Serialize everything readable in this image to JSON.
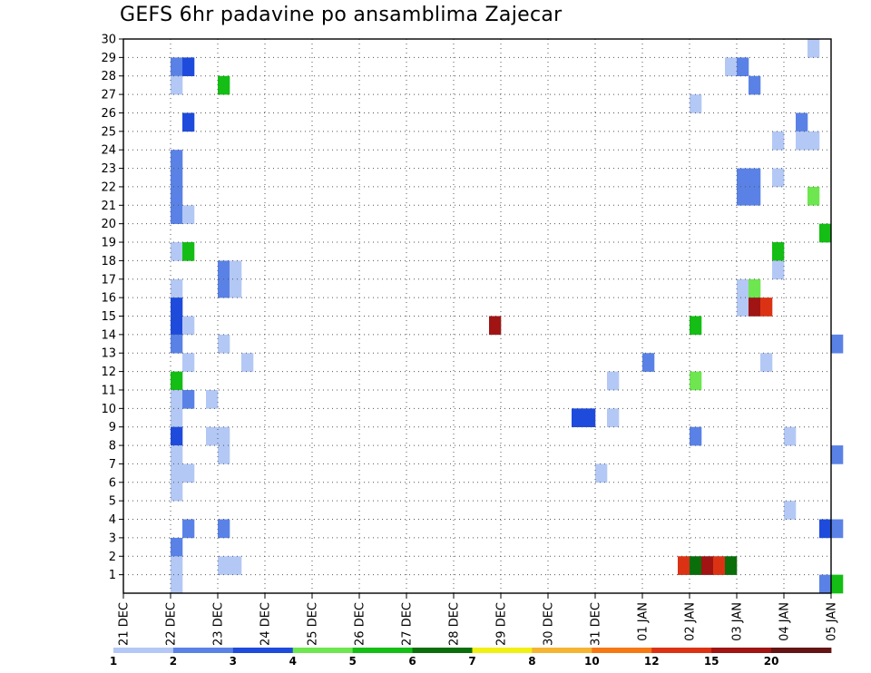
{
  "chart_data": {
    "type": "heatmap",
    "title": "GEFS 6hr padavine po ansamblima Zajecar",
    "x_tick_labels": [
      "21 DEC",
      "22 DEC",
      "23 DEC",
      "24 DEC",
      "25 DEC",
      "26 DEC",
      "27 DEC",
      "28 DEC",
      "29 DEC",
      "30 DEC",
      "31 DEC",
      "01 JAN",
      "02 JAN",
      "03 JAN",
      "04 JAN",
      "05 JAN"
    ],
    "x_range_days": [
      0,
      15
    ],
    "y_tick_labels": [
      "1",
      "2",
      "3",
      "4",
      "5",
      "6",
      "7",
      "8",
      "9",
      "10",
      "11",
      "12",
      "13",
      "14",
      "15",
      "16",
      "17",
      "18",
      "19",
      "20",
      "21",
      "22",
      "23",
      "24",
      "25",
      "26",
      "27",
      "28",
      "29",
      "30"
    ],
    "y_range": [
      0,
      30
    ],
    "grid": true,
    "step_hours": 6,
    "color_levels": [
      {
        "upper": "2",
        "color": "#b4c8f5"
      },
      {
        "upper": "3",
        "color": "#5a82e6"
      },
      {
        "upper": "4",
        "color": "#1e4bdc"
      },
      {
        "upper": "5",
        "color": "#6ee650"
      },
      {
        "upper": "6",
        "color": "#14be14"
      },
      {
        "upper": "7",
        "color": "#0a6e0a"
      },
      {
        "upper": "8",
        "color": "#f0f014"
      },
      {
        "upper": "10",
        "color": "#f5b432"
      },
      {
        "upper": "12",
        "color": "#f57814"
      },
      {
        "upper": "15",
        "color": "#dc3214"
      },
      {
        "upper": "20",
        "color": "#a01414"
      },
      {
        "upper": "",
        "color": "#641414"
      }
    ],
    "colorbar_labels": [
      "1",
      "2",
      "3",
      "4",
      "5",
      "6",
      "7",
      "8",
      "10",
      "12",
      "15",
      "20"
    ],
    "cells": [
      {
        "m": 30,
        "t": "04 JAN 12Z",
        "l": 0
      },
      {
        "m": 29,
        "t": "22 DEC 00Z",
        "l": 1
      },
      {
        "m": 29,
        "t": "22 DEC 06Z",
        "l": 2
      },
      {
        "m": 29,
        "t": "02 JAN 18Z",
        "l": 0
      },
      {
        "m": 29,
        "t": "03 JAN 00Z",
        "l": 1
      },
      {
        "m": 28,
        "t": "22 DEC 00Z",
        "l": 0
      },
      {
        "m": 28,
        "t": "23 DEC 00Z",
        "l": 4
      },
      {
        "m": 28,
        "t": "03 JAN 06Z",
        "l": 1
      },
      {
        "m": 27,
        "t": "02 JAN 00Z",
        "l": 0
      },
      {
        "m": 26,
        "t": "22 DEC 06Z",
        "l": 2
      },
      {
        "m": 26,
        "t": "04 JAN 06Z",
        "l": 1
      },
      {
        "m": 25,
        "t": "03 JAN 18Z",
        "l": 0
      },
      {
        "m": 25,
        "t": "04 JAN 06Z",
        "l": 0
      },
      {
        "m": 25,
        "t": "04 JAN 12Z",
        "l": 0
      },
      {
        "m": 24,
        "t": "22 DEC 00Z",
        "l": 1
      },
      {
        "m": 23,
        "t": "22 DEC 00Z",
        "l": 1
      },
      {
        "m": 23,
        "t": "03 JAN 00Z",
        "l": 1
      },
      {
        "m": 23,
        "t": "03 JAN 06Z",
        "l": 1
      },
      {
        "m": 23,
        "t": "03 JAN 18Z",
        "l": 0
      },
      {
        "m": 22,
        "t": "22 DEC 00Z",
        "l": 1
      },
      {
        "m": 22,
        "t": "03 JAN 00Z",
        "l": 1
      },
      {
        "m": 22,
        "t": "03 JAN 06Z",
        "l": 1
      },
      {
        "m": 22,
        "t": "04 JAN 12Z",
        "l": 3
      },
      {
        "m": 21,
        "t": "22 DEC 00Z",
        "l": 1
      },
      {
        "m": 21,
        "t": "22 DEC 06Z",
        "l": 0
      },
      {
        "m": 20,
        "t": "04 JAN 18Z",
        "l": 4
      },
      {
        "m": 19,
        "t": "22 DEC 00Z",
        "l": 0
      },
      {
        "m": 19,
        "t": "22 DEC 06Z",
        "l": 4
      },
      {
        "m": 19,
        "t": "03 JAN 18Z",
        "l": 4
      },
      {
        "m": 18,
        "t": "23 DEC 00Z",
        "l": 1
      },
      {
        "m": 18,
        "t": "23 DEC 06Z",
        "l": 0
      },
      {
        "m": 18,
        "t": "03 JAN 18Z",
        "l": 0
      },
      {
        "m": 17,
        "t": "22 DEC 00Z",
        "l": 0
      },
      {
        "m": 17,
        "t": "23 DEC 00Z",
        "l": 1
      },
      {
        "m": 17,
        "t": "23 DEC 06Z",
        "l": 0
      },
      {
        "m": 17,
        "t": "03 JAN 00Z",
        "l": 0
      },
      {
        "m": 17,
        "t": "03 JAN 06Z",
        "l": 3
      },
      {
        "m": 16,
        "t": "22 DEC 00Z",
        "l": 2
      },
      {
        "m": 16,
        "t": "03 JAN 00Z",
        "l": 0
      },
      {
        "m": 16,
        "t": "03 JAN 06Z",
        "l": 10
      },
      {
        "m": 16,
        "t": "03 JAN 12Z",
        "l": 9
      },
      {
        "m": 15,
        "t": "22 DEC 00Z",
        "l": 2
      },
      {
        "m": 15,
        "t": "22 DEC 06Z",
        "l": 0
      },
      {
        "m": 15,
        "t": "28 DEC 18Z",
        "l": 10
      },
      {
        "m": 15,
        "t": "02 JAN 00Z",
        "l": 4
      },
      {
        "m": 14,
        "t": "22 DEC 00Z",
        "l": 1
      },
      {
        "m": 14,
        "t": "23 DEC 00Z",
        "l": 0
      },
      {
        "m": 14,
        "t": "05 JAN 00Z",
        "l": 1
      },
      {
        "m": 13,
        "t": "22 DEC 06Z",
        "l": 0
      },
      {
        "m": 13,
        "t": "23 DEC 12Z",
        "l": 0
      },
      {
        "m": 13,
        "t": "01 JAN 00Z",
        "l": 1
      },
      {
        "m": 13,
        "t": "03 JAN 12Z",
        "l": 0
      },
      {
        "m": 12,
        "t": "22 DEC 00Z",
        "l": 4
      },
      {
        "m": 12,
        "t": "31 DEC 06Z",
        "l": 0
      },
      {
        "m": 12,
        "t": "02 JAN 00Z",
        "l": 3
      },
      {
        "m": 11,
        "t": "22 DEC 00Z",
        "l": 0
      },
      {
        "m": 11,
        "t": "22 DEC 06Z",
        "l": 1
      },
      {
        "m": 11,
        "t": "22 DEC 18Z",
        "l": 0
      },
      {
        "m": 10,
        "t": "22 DEC 00Z",
        "l": 0
      },
      {
        "m": 10,
        "t": "30 DEC 12Z",
        "l": 2
      },
      {
        "m": 10,
        "t": "30 DEC 18Z",
        "l": 2
      },
      {
        "m": 10,
        "t": "31 DEC 06Z",
        "l": 0
      },
      {
        "m": 9,
        "t": "22 DEC 00Z",
        "l": 2
      },
      {
        "m": 9,
        "t": "22 DEC 18Z",
        "l": 0
      },
      {
        "m": 9,
        "t": "23 DEC 00Z",
        "l": 0
      },
      {
        "m": 9,
        "t": "02 JAN 00Z",
        "l": 1
      },
      {
        "m": 9,
        "t": "04 JAN 00Z",
        "l": 0
      },
      {
        "m": 8,
        "t": "22 DEC 00Z",
        "l": 0
      },
      {
        "m": 8,
        "t": "23 DEC 00Z",
        "l": 0
      },
      {
        "m": 8,
        "t": "05 JAN 00Z",
        "l": 1
      },
      {
        "m": 7,
        "t": "22 DEC 00Z",
        "l": 0
      },
      {
        "m": 7,
        "t": "22 DEC 06Z",
        "l": 0
      },
      {
        "m": 7,
        "t": "31 DEC 00Z",
        "l": 0
      },
      {
        "m": 6,
        "t": "22 DEC 00Z",
        "l": 0
      },
      {
        "m": 5,
        "t": "04 JAN 00Z",
        "l": 0
      },
      {
        "m": 4,
        "t": "22 DEC 06Z",
        "l": 1
      },
      {
        "m": 4,
        "t": "23 DEC 00Z",
        "l": 1
      },
      {
        "m": 4,
        "t": "04 JAN 18Z",
        "l": 2
      },
      {
        "m": 4,
        "t": "05 JAN 00Z",
        "l": 1
      },
      {
        "m": 3,
        "t": "22 DEC 00Z",
        "l": 1
      },
      {
        "m": 2,
        "t": "22 DEC 00Z",
        "l": 0
      },
      {
        "m": 2,
        "t": "23 DEC 00Z",
        "l": 0
      },
      {
        "m": 2,
        "t": "23 DEC 06Z",
        "l": 0
      },
      {
        "m": 2,
        "t": "01 JAN 18Z",
        "l": 9
      },
      {
        "m": 2,
        "t": "02 JAN 00Z",
        "l": 5
      },
      {
        "m": 2,
        "t": "02 JAN 06Z",
        "l": 10
      },
      {
        "m": 2,
        "t": "02 JAN 12Z",
        "l": 9
      },
      {
        "m": 2,
        "t": "02 JAN 18Z",
        "l": 5
      },
      {
        "m": 1,
        "t": "22 DEC 00Z",
        "l": 0
      },
      {
        "m": 1,
        "t": "04 JAN 18Z",
        "l": 1
      },
      {
        "m": 1,
        "t": "05 JAN 00Z",
        "l": 4
      }
    ]
  }
}
